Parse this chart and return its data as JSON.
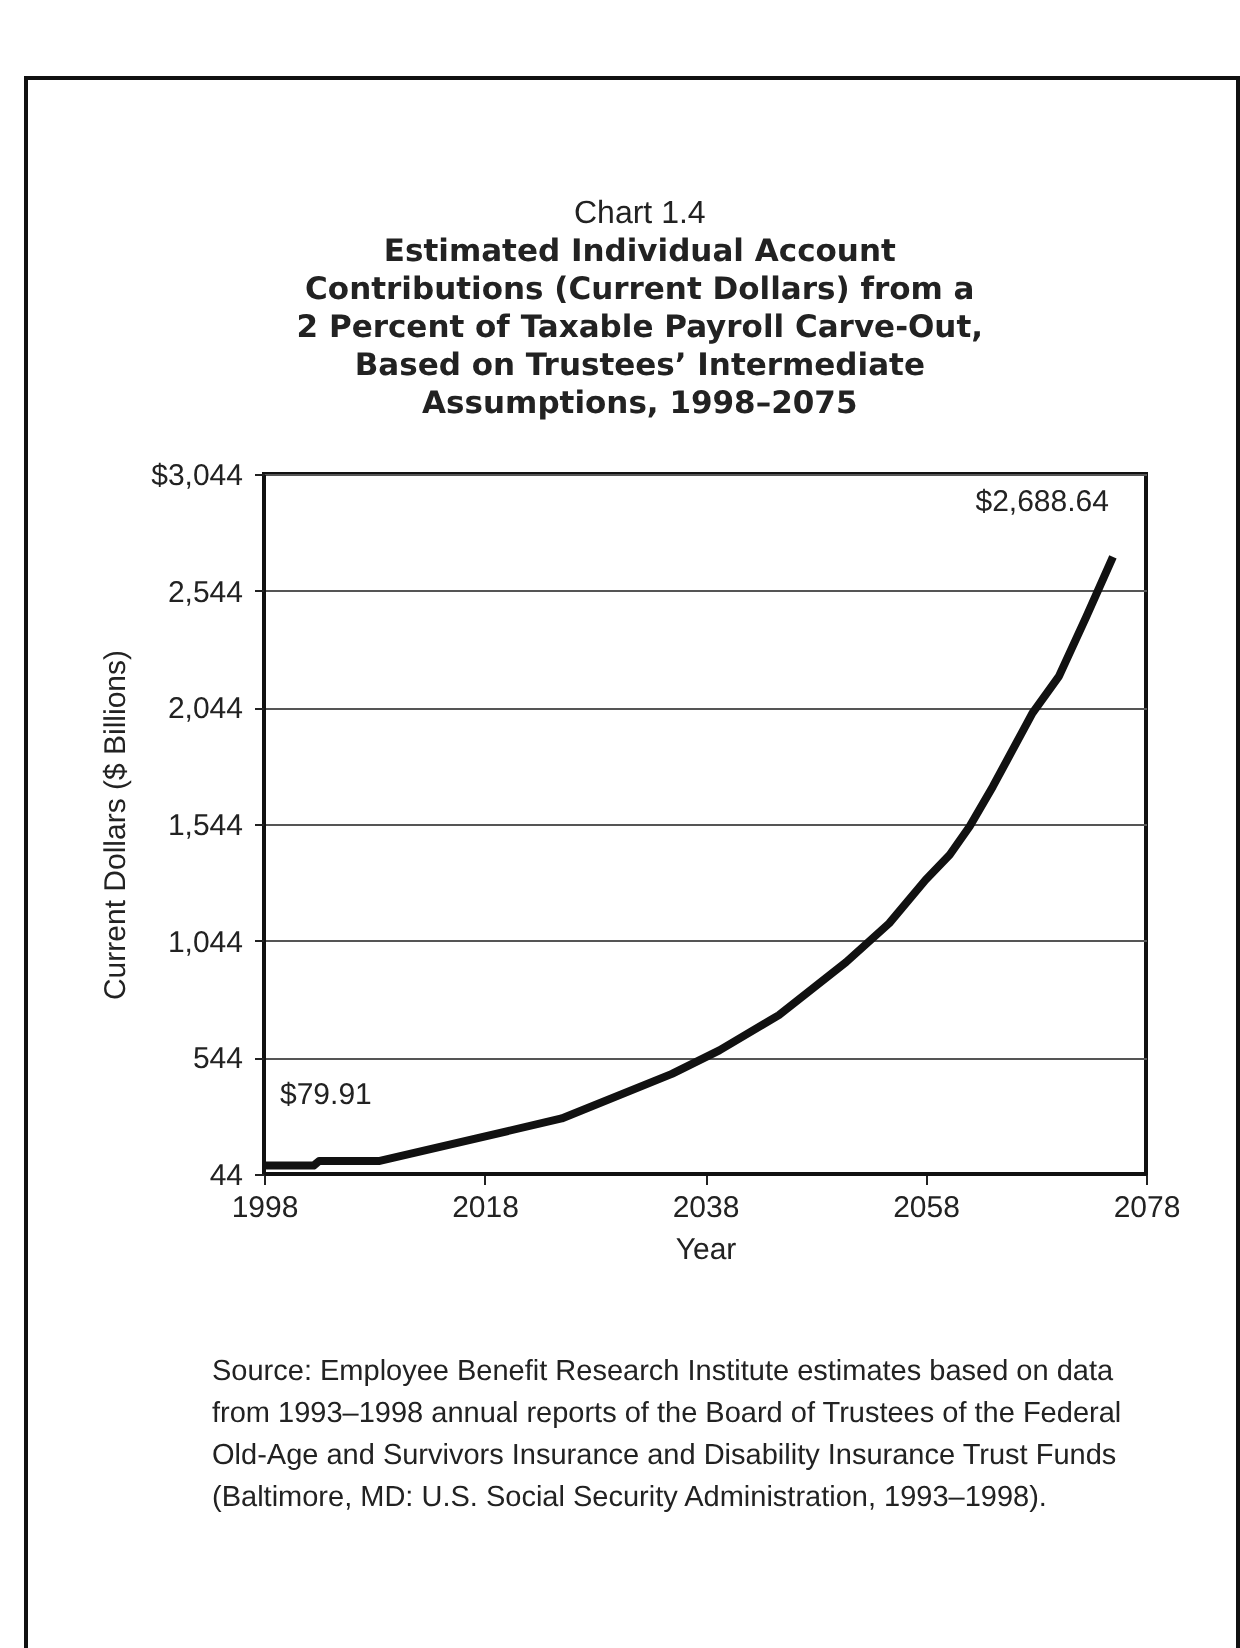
{
  "chart_data": {
    "type": "line",
    "title": "Chart 1.4",
    "subtitle": "Estimated Individual Account Contributions (Current Dollars) from a 2 Percent of Taxable Payroll Carve-Out, Based on Trustees’ Intermediate Assumptions, 1998–2075",
    "xlabel": "Year",
    "ylabel": "Current Dollars ($ Billions)",
    "x": [
      1998,
      2002.5,
      2003,
      2008.5,
      2025,
      2035,
      2039.3,
      2044.7,
      2050.8,
      2054.7,
      2058,
      2060.2,
      2062,
      2064.1,
      2067.7,
      2070.1,
      2072.6,
      2075
    ],
    "series": [
      {
        "color": "#111111",
        "values": [
          79.91,
          80,
          100,
          100,
          282,
          473,
          574,
          725,
          952,
          1118,
          1304,
          1412,
          1533,
          1704,
          2019,
          2177,
          2434,
          2688.64
        ]
      }
    ],
    "xlim": [
      1998,
      2078
    ],
    "xticks": [
      1998,
      2018,
      2038,
      2058,
      2078
    ],
    "ylim": [
      44,
      3044
    ],
    "yticks": [
      {
        "value": 44,
        "label": "44"
      },
      {
        "value": 544,
        "label": "544"
      },
      {
        "value": 1044,
        "label": "1,044"
      },
      {
        "value": 1544,
        "label": "1,544"
      },
      {
        "value": 2044,
        "label": "2,044"
      },
      {
        "value": 2544,
        "label": "2,544"
      },
      {
        "value": 3044,
        "label": "$3,044"
      }
    ],
    "grid": "y",
    "line_style": "solid",
    "annotations": [
      {
        "text": "$79.91",
        "x": 1998,
        "y": 79.91
      },
      {
        "text": "$2,688.64",
        "x": 2075,
        "y": 2688.64
      },
      "Source: Employee Benefit Research Institute estimates based on data from  1993–1998 annual reports of the Board of Trustees of the Federal Old-Age and Survivors Insurance and Disability Insurance Trust Funds (Baltimore, MD: U.S. Social Security Administration, 1993–1998)."
    ]
  }
}
